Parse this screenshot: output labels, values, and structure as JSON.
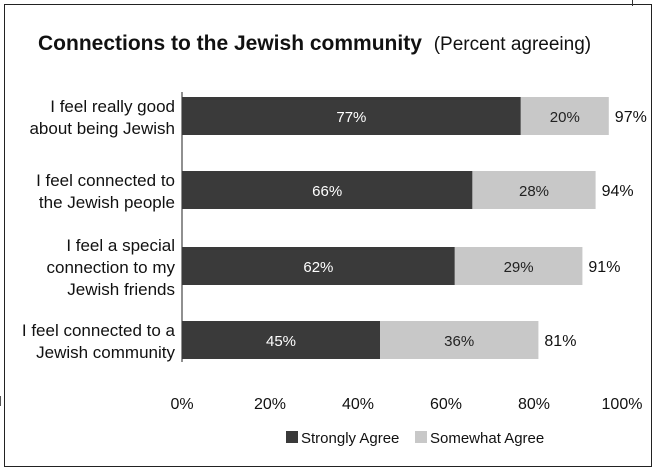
{
  "chart_data": {
    "type": "bar",
    "orientation": "horizontal",
    "stacked": true,
    "title": "Connections to the Jewish community",
    "subtitle": "(Percent agreeing)",
    "categories": [
      [
        "I feel really good",
        "about being Jewish"
      ],
      [
        "I feel connected to",
        "the Jewish people"
      ],
      [
        "I feel a special",
        "connection to my",
        "Jewish friends"
      ],
      [
        "I feel connected to a",
        "Jewish community"
      ]
    ],
    "series": [
      {
        "name": "Strongly Agree",
        "values": [
          77,
          66,
          62,
          45
        ],
        "color": "#3a3a3a",
        "labels": [
          "77%",
          "66%",
          "62%",
          "45%"
        ]
      },
      {
        "name": "Somewhat Agree",
        "values": [
          20,
          28,
          29,
          36
        ],
        "color": "#c8c8c8",
        "labels": [
          "20%",
          "28%",
          "29%",
          "36%"
        ]
      }
    ],
    "totals": [
      "97%",
      "94%",
      "91%",
      "81%"
    ],
    "xlim": [
      0,
      100
    ],
    "xticks": [
      "0%",
      "20%",
      "40%",
      "60%",
      "80%",
      "100%"
    ],
    "grid": false,
    "legend_position": "bottom"
  }
}
